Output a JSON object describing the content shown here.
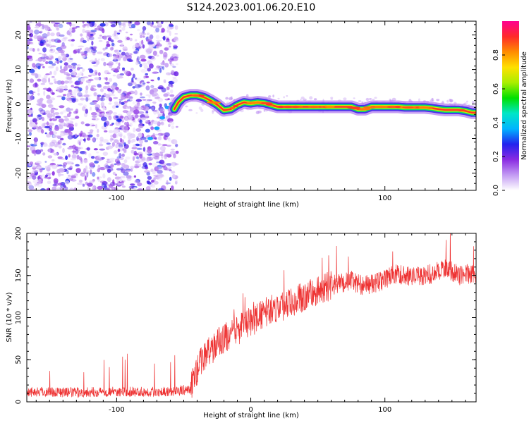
{
  "title": "S124.2023.001.06.20.E10",
  "chart_data": [
    {
      "type": "heatmap",
      "xlabel": "Height of straight line (km)",
      "ylabel": "Frequency (Hz)",
      "xlim": [
        -167,
        168
      ],
      "ylim": [
        -25,
        24
      ],
      "xticks": [
        -100,
        0,
        100
      ],
      "xtick_labels": [
        "-100",
        "",
        "100"
      ],
      "yticks": [
        -20,
        -10,
        0,
        10,
        20
      ],
      "noise_region_x": [
        -167,
        -57
      ],
      "ridge": {
        "x": [
          -57,
          -54,
          -50,
          -45,
          -40,
          -35,
          -30,
          -25,
          -20,
          -15,
          -10,
          -5,
          0,
          5,
          10,
          20,
          30,
          40,
          50,
          60,
          70,
          75,
          80,
          85,
          90,
          95,
          100,
          105,
          110,
          115,
          120,
          125,
          130,
          135,
          140,
          145,
          150,
          155,
          160,
          165,
          168
        ],
        "y": [
          -1.5,
          0.5,
          2,
          2.5,
          2.5,
          2,
          1,
          -0.2,
          -1.8,
          -1.5,
          -0.3,
          0.5,
          0.2,
          0.5,
          0.3,
          -0.8,
          -0.8,
          -0.8,
          -0.8,
          -0.8,
          -0.8,
          -0.8,
          -1.5,
          -1.5,
          -0.8,
          -0.8,
          -0.8,
          -0.8,
          -0.8,
          -1,
          -1,
          -1,
          -1,
          -1.2,
          -1.5,
          -1.7,
          -1.7,
          -1.7,
          -2,
          -2.5,
          -2.5
        ]
      },
      "colorbar": {
        "label": "Normalized spectral amplitude",
        "ticks": [
          "0.0",
          "0.2",
          "0.4",
          "0.6",
          "0.8"
        ],
        "tick_values": [
          0.0,
          0.2,
          0.4,
          0.6,
          0.8
        ],
        "range": [
          0,
          1
        ],
        "colors": [
          "#ffffff",
          "#c39bf3",
          "#8a2be2",
          "#2222ee",
          "#00b4ff",
          "#00e6c8",
          "#00e000",
          "#aaee00",
          "#ffe000",
          "#ff8c00",
          "#ff2a2a",
          "#ff0090"
        ]
      }
    },
    {
      "type": "line",
      "xlabel": "Height of straight line (km)",
      "ylabel": "SNR (10 * v/v)",
      "xlim": [
        -167,
        168
      ],
      "ylim": [
        0,
        200
      ],
      "xticks": [
        -100,
        0,
        100
      ],
      "xtick_labels": [
        "-100",
        "0",
        "100"
      ],
      "yticks": [
        0,
        50,
        100,
        150,
        200
      ],
      "color": "#ee3333",
      "series": [
        {
          "x": [
            -167,
            -150,
            -130,
            -110,
            -90,
            -70,
            -55,
            -45,
            -42,
            -38,
            -35,
            -30,
            -25,
            -20,
            -15,
            -10,
            -5,
            0,
            5,
            10,
            15,
            20,
            25,
            30,
            40,
            50,
            60,
            70,
            75,
            80,
            85,
            90,
            95,
            100,
            105,
            110,
            115,
            120,
            125,
            130,
            135,
            140,
            145,
            150,
            155,
            160,
            168
          ],
          "y": [
            12,
            12,
            11,
            12,
            12,
            12,
            13,
            15,
            30,
            45,
            55,
            60,
            70,
            75,
            80,
            85,
            90,
            95,
            100,
            105,
            110,
            112,
            115,
            118,
            125,
            132,
            138,
            142,
            144,
            140,
            138,
            140,
            142,
            145,
            150,
            152,
            150,
            148,
            150,
            150,
            152,
            155,
            160,
            155,
            150,
            152,
            152
          ]
        }
      ]
    }
  ]
}
